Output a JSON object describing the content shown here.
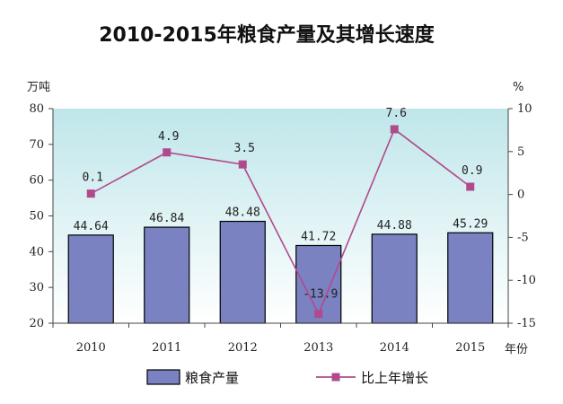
{
  "chart_data": {
    "type": "bar",
    "title": "2010-2015年粮食产量及其增长速度",
    "categories": [
      "2010",
      "2011",
      "2012",
      "2013",
      "2014",
      "2015"
    ],
    "xlabel": "年份",
    "ylabel_left": "万吨",
    "ylabel_right": "%",
    "ylim_left": [
      20,
      80
    ],
    "ylim_right": [
      -15,
      10
    ],
    "yticks_left": [
      "80",
      "70",
      "60",
      "50",
      "40",
      "30",
      "20"
    ],
    "yticks_right": [
      "10",
      "5",
      "0",
      "-5",
      "-10",
      "-15"
    ],
    "grid": false,
    "legend_position": "bottom",
    "series": [
      {
        "name": "粮食产量",
        "type": "bar",
        "axis": "left",
        "color": "#7b82c2",
        "values": [
          44.64,
          46.84,
          48.48,
          41.72,
          44.88,
          45.29
        ],
        "labels": [
          "44.64",
          "46.84",
          "48.48",
          "41.72",
          "44.88",
          "45.29"
        ]
      },
      {
        "name": "比上年增长",
        "type": "line",
        "axis": "right",
        "color": "#b04a8c",
        "values": [
          0.1,
          4.9,
          3.5,
          -13.9,
          7.6,
          0.9
        ],
        "labels": [
          "0.1",
          "4.9",
          "3.5",
          "-13.9",
          "7.6",
          "0.9"
        ]
      }
    ]
  }
}
